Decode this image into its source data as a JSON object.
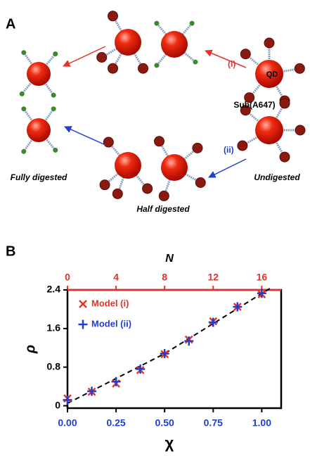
{
  "panel_a": {
    "label": "A",
    "arrow_i": "(i)",
    "arrow_ii": "(ii)",
    "particle": "QD",
    "substrate": "Sub(A647)",
    "fully": "Fully digested",
    "undigested": "Undigested",
    "half": "Half digested"
  },
  "chart_data": {
    "type": "scatter",
    "panel_label": "B",
    "xlabel": "χ",
    "x2label": "N",
    "ylabel": "ρ",
    "xlim": [
      0,
      1.1
    ],
    "xticks": [
      {
        "value": 0,
        "label": "0.00"
      },
      {
        "value": 0.25,
        "label": "0.25"
      },
      {
        "value": 0.5,
        "label": "0.50"
      },
      {
        "value": 0.75,
        "label": "0.75"
      },
      {
        "value": 1,
        "label": "1.00"
      }
    ],
    "x2lim": [
      0,
      17.6
    ],
    "x2ticks": [
      0,
      4,
      8,
      12,
      16
    ],
    "ylim": [
      -0.05,
      2.4
    ],
    "yticks": [
      0,
      0.8,
      1.6,
      2.4
    ],
    "xaxis_color": "#1f3fd1",
    "x2axis_color": "#e8312a",
    "series": [
      {
        "name": "Model (i)",
        "color": "#e8312a",
        "marker": "x",
        "axis": "x2",
        "x": [
          0,
          2,
          4,
          6,
          8,
          10,
          12,
          14,
          16
        ],
        "values": [
          0.15,
          0.29,
          0.46,
          0.74,
          1.07,
          1.37,
          1.75,
          2.05,
          2.31
        ]
      },
      {
        "name": "Model (ii)",
        "color": "#1f3fd1",
        "marker": "+",
        "x": [
          0,
          0.125,
          0.25,
          0.375,
          0.5,
          0.625,
          0.75,
          0.875,
          1
        ],
        "values": [
          0.12,
          0.3,
          0.5,
          0.76,
          1.08,
          1.34,
          1.73,
          2.05,
          2.33
        ]
      }
    ],
    "fit_line": {
      "color": "#000000",
      "x": [
        0,
        0.5,
        1.05
      ],
      "values": [
        0.05,
        1.08,
        2.45
      ]
    }
  }
}
